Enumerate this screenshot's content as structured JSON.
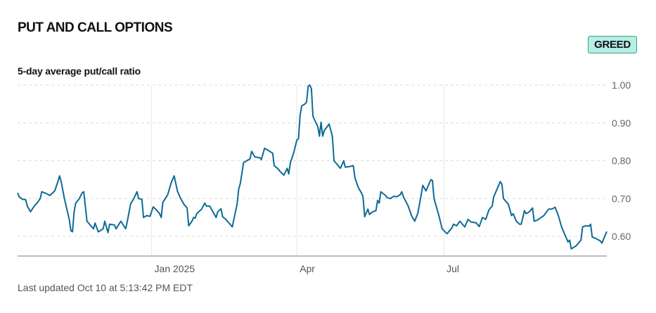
{
  "header": {
    "title": "PUT AND CALL OPTIONS",
    "badge": "GREED",
    "subtitle": "5-day average put/call ratio"
  },
  "footer": {
    "last_updated": "Last updated Oct 10 at 5:13:42 PM EDT"
  },
  "colors": {
    "line": "#0e6a96",
    "badge_bg": "#b6ede6",
    "badge_border": "#3aa37a"
  },
  "chart_data": {
    "type": "line",
    "title": "5-day average put/call ratio",
    "x_unit": "days since 2024-10-10",
    "xlim": [
      0,
      365
    ],
    "ylim": [
      0.548,
      1.0
    ],
    "y_ticks": [
      {
        "v": 1.0,
        "label": "1.00"
      },
      {
        "v": 0.9,
        "label": "0.90"
      },
      {
        "v": 0.8,
        "label": "0.80"
      },
      {
        "v": 0.7,
        "label": "0.70"
      },
      {
        "v": 0.6,
        "label": "0.60"
      }
    ],
    "x_ticks": [
      {
        "v": 83,
        "label": "Jan 2025"
      },
      {
        "v": 173,
        "label": "Apr"
      },
      {
        "v": 264,
        "label": "Jul"
      }
    ],
    "grid": true,
    "series": [
      {
        "name": "5-day average put/call ratio",
        "points": [
          [
            0,
            0.715
          ],
          [
            1,
            0.705
          ],
          [
            3,
            0.698
          ],
          [
            5,
            0.697
          ],
          [
            6,
            0.68
          ],
          [
            8,
            0.665
          ],
          [
            10,
            0.678
          ],
          [
            12,
            0.688
          ],
          [
            14,
            0.7
          ],
          [
            15,
            0.718
          ],
          [
            18,
            0.713
          ],
          [
            20,
            0.708
          ],
          [
            23,
            0.72
          ],
          [
            25,
            0.745
          ],
          [
            26,
            0.76
          ],
          [
            27,
            0.745
          ],
          [
            29,
            0.7
          ],
          [
            32,
            0.645
          ],
          [
            33,
            0.615
          ],
          [
            34,
            0.612
          ],
          [
            35,
            0.665
          ],
          [
            36,
            0.688
          ],
          [
            38,
            0.698
          ],
          [
            40,
            0.715
          ],
          [
            41,
            0.718
          ],
          [
            43,
            0.64
          ],
          [
            45,
            0.63
          ],
          [
            47,
            0.62
          ],
          [
            48,
            0.635
          ],
          [
            50,
            0.612
          ],
          [
            53,
            0.62
          ],
          [
            54,
            0.64
          ],
          [
            56,
            0.61
          ],
          [
            57,
            0.632
          ],
          [
            60,
            0.63
          ],
          [
            61,
            0.62
          ],
          [
            64,
            0.64
          ],
          [
            67,
            0.62
          ],
          [
            68,
            0.64
          ],
          [
            70,
            0.685
          ],
          [
            72,
            0.7
          ],
          [
            74,
            0.718
          ],
          [
            75,
            0.7
          ],
          [
            77,
            0.698
          ],
          [
            78,
            0.65
          ],
          [
            80,
            0.655
          ],
          [
            82,
            0.653
          ],
          [
            84,
            0.678
          ],
          [
            86,
            0.67
          ],
          [
            88,
            0.66
          ],
          [
            89,
            0.65
          ],
          [
            90,
            0.69
          ],
          [
            93,
            0.71
          ],
          [
            95,
            0.74
          ],
          [
            97,
            0.76
          ],
          [
            99,
            0.72
          ],
          [
            101,
            0.7
          ],
          [
            103,
            0.685
          ],
          [
            105,
            0.675
          ],
          [
            106,
            0.628
          ],
          [
            108,
            0.64
          ],
          [
            109,
            0.65
          ],
          [
            110,
            0.648
          ],
          [
            111,
            0.66
          ],
          [
            114,
            0.672
          ],
          [
            116,
            0.688
          ],
          [
            117,
            0.68
          ],
          [
            119,
            0.68
          ],
          [
            121,
            0.665
          ],
          [
            123,
            0.65
          ],
          [
            124,
            0.665
          ],
          [
            126,
            0.673
          ],
          [
            127,
            0.652
          ],
          [
            129,
            0.645
          ],
          [
            131,
            0.635
          ],
          [
            133,
            0.625
          ],
          [
            134,
            0.645
          ],
          [
            136,
            0.685
          ],
          [
            137,
            0.725
          ],
          [
            138,
            0.74
          ],
          [
            140,
            0.795
          ],
          [
            142,
            0.8
          ],
          [
            144,
            0.805
          ],
          [
            145,
            0.825
          ],
          [
            147,
            0.81
          ],
          [
            150,
            0.808
          ],
          [
            151,
            0.803
          ],
          [
            153,
            0.833
          ],
          [
            155,
            0.828
          ],
          [
            158,
            0.82
          ],
          [
            159,
            0.787
          ],
          [
            161,
            0.78
          ],
          [
            163,
            0.77
          ],
          [
            165,
            0.762
          ],
          [
            167,
            0.78
          ],
          [
            168,
            0.765
          ],
          [
            169,
            0.795
          ],
          [
            171,
            0.82
          ],
          [
            173,
            0.855
          ],
          [
            174,
            0.858
          ],
          [
            175,
            0.92
          ],
          [
            176,
            0.945
          ],
          [
            178,
            0.95
          ],
          [
            179,
            0.955
          ],
          [
            180,
            0.997
          ],
          [
            181,
            1.0
          ],
          [
            182,
            0.99
          ],
          [
            183,
            0.918
          ],
          [
            184,
            0.908
          ],
          [
            186,
            0.89
          ],
          [
            187,
            0.865
          ],
          [
            188,
            0.902
          ],
          [
            189,
            0.865
          ],
          [
            190,
            0.88
          ],
          [
            193,
            0.897
          ],
          [
            195,
            0.865
          ],
          [
            196,
            0.8
          ],
          [
            198,
            0.79
          ],
          [
            200,
            0.78
          ],
          [
            202,
            0.8
          ],
          [
            203,
            0.783
          ],
          [
            206,
            0.785
          ],
          [
            208,
            0.787
          ],
          [
            209,
            0.755
          ],
          [
            211,
            0.73
          ],
          [
            213,
            0.715
          ],
          [
            214,
            0.705
          ],
          [
            215,
            0.652
          ],
          [
            217,
            0.672
          ],
          [
            218,
            0.658
          ],
          [
            220,
            0.665
          ],
          [
            222,
            0.668
          ],
          [
            223,
            0.695
          ],
          [
            224,
            0.688
          ],
          [
            225,
            0.718
          ],
          [
            228,
            0.708
          ],
          [
            229,
            0.702
          ],
          [
            231,
            0.7
          ],
          [
            233,
            0.706
          ],
          [
            235,
            0.705
          ],
          [
            237,
            0.71
          ],
          [
            238,
            0.718
          ],
          [
            239,
            0.705
          ],
          [
            242,
            0.68
          ],
          [
            244,
            0.655
          ],
          [
            246,
            0.64
          ],
          [
            248,
            0.662
          ],
          [
            250,
            0.71
          ],
          [
            251,
            0.735
          ],
          [
            253,
            0.72
          ],
          [
            256,
            0.75
          ],
          [
            257,
            0.748
          ],
          [
            258,
            0.7
          ],
          [
            259,
            0.685
          ],
          [
            261,
            0.655
          ],
          [
            263,
            0.62
          ],
          [
            266,
            0.607
          ],
          [
            269,
            0.622
          ],
          [
            270,
            0.632
          ],
          [
            272,
            0.628
          ],
          [
            274,
            0.64
          ],
          [
            277,
            0.625
          ],
          [
            279,
            0.645
          ],
          [
            281,
            0.638
          ],
          [
            284,
            0.636
          ],
          [
            286,
            0.626
          ],
          [
            288,
            0.65
          ],
          [
            290,
            0.645
          ],
          [
            292,
            0.67
          ],
          [
            294,
            0.68
          ],
          [
            295,
            0.705
          ],
          [
            297,
            0.725
          ],
          [
            299,
            0.745
          ],
          [
            300,
            0.738
          ],
          [
            301,
            0.7
          ],
          [
            304,
            0.685
          ],
          [
            306,
            0.655
          ],
          [
            307,
            0.66
          ],
          [
            309,
            0.64
          ],
          [
            311,
            0.632
          ],
          [
            312,
            0.632
          ],
          [
            314,
            0.668
          ],
          [
            315,
            0.66
          ],
          [
            317,
            0.665
          ],
          [
            319,
            0.675
          ],
          [
            320,
            0.64
          ],
          [
            322,
            0.643
          ],
          [
            326,
            0.655
          ],
          [
            329,
            0.672
          ],
          [
            331,
            0.672
          ],
          [
            333,
            0.677
          ],
          [
            335,
            0.655
          ],
          [
            337,
            0.625
          ],
          [
            339,
            0.605
          ],
          [
            341,
            0.585
          ],
          [
            342,
            0.59
          ],
          [
            343,
            0.567
          ],
          [
            346,
            0.575
          ],
          [
            348,
            0.585
          ],
          [
            349,
            0.59
          ],
          [
            350,
            0.625
          ],
          [
            352,
            0.628
          ],
          [
            354,
            0.627
          ],
          [
            355,
            0.632
          ],
          [
            356,
            0.598
          ],
          [
            358,
            0.595
          ],
          [
            361,
            0.588
          ],
          [
            362,
            0.582
          ],
          [
            365,
            0.613
          ]
        ]
      }
    ]
  }
}
